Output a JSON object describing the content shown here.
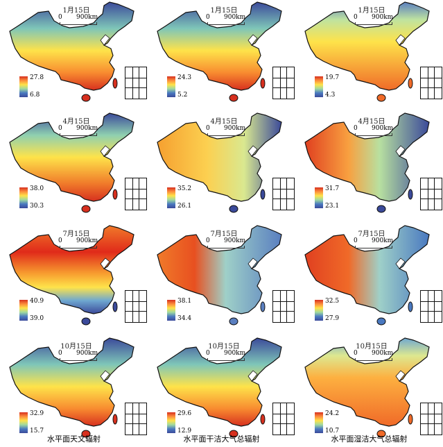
{
  "scale_bar": {
    "zero": "0",
    "distance": "900km"
  },
  "columns": [
    "水平面天文辐射",
    "水平面干洁大气总辐射",
    "水平面湿洁大气总辐射"
  ],
  "panels": [
    {
      "date": "1月15日",
      "max": "27.8",
      "min": "6.8"
    },
    {
      "date": "1月15日",
      "max": "24.3",
      "min": "5.2"
    },
    {
      "date": "1月15日",
      "max": "19.7",
      "min": "4.3"
    },
    {
      "date": "4月15日",
      "max": "38.0",
      "min": "30.3"
    },
    {
      "date": "4月15日",
      "max": "35.2",
      "min": "26.1"
    },
    {
      "date": "4月15日",
      "max": "31.7",
      "min": "23.1"
    },
    {
      "date": "7月15日",
      "max": "40.9",
      "min": "39.0"
    },
    {
      "date": "7月15日",
      "max": "38.1",
      "min": "34.4"
    },
    {
      "date": "7月15日",
      "max": "32.5",
      "min": "27.9"
    },
    {
      "date": "10月15日",
      "max": "32.9",
      "min": "15.7"
    },
    {
      "date": "10月15日",
      "max": "29.6",
      "min": "12.9"
    },
    {
      "date": "10月15日",
      "max": "24.2",
      "min": "10.7"
    }
  ]
}
